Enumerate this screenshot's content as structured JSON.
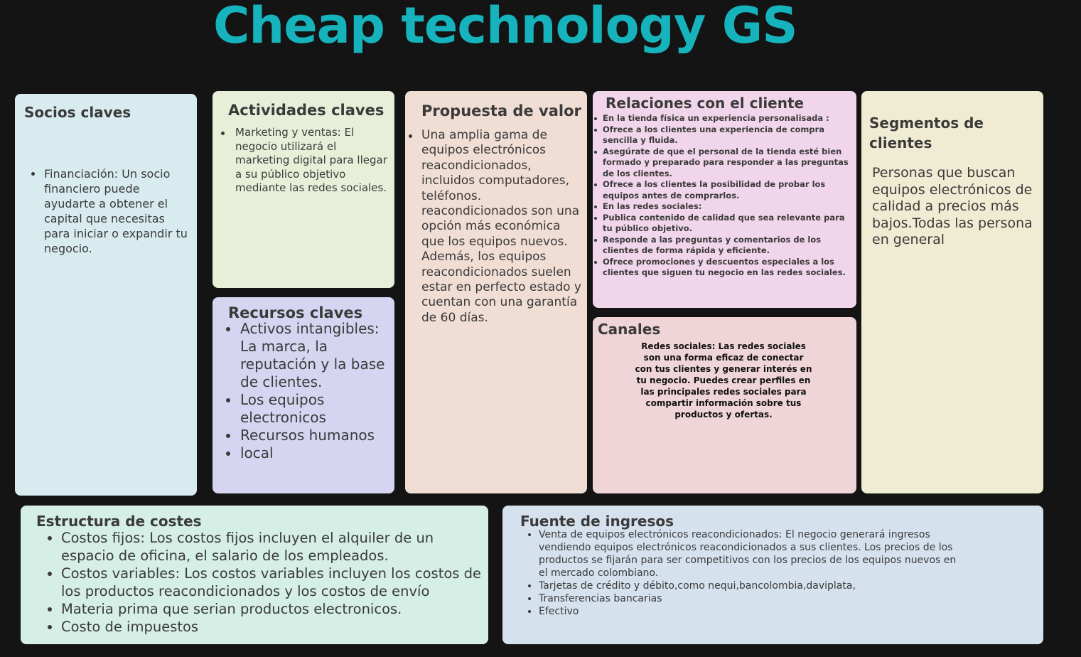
{
  "title": "Cheap technology GS",
  "socios": {
    "heading": "Socios claves",
    "items": [
      "Financiación: Un socio financiero puede ayudarte a obtener el capital que necesitas para iniciar o expandir tu negocio."
    ]
  },
  "actividades": {
    "heading": "Actividades claves",
    "items": [
      "Marketing y ventas: El negocio utilizará el marketing digital para llegar a su público objetivo mediante las redes sociales."
    ]
  },
  "recursos": {
    "heading": "Recursos claves",
    "items": [
      "Activos intangibles: La marca, la reputación y la base de clientes.",
      "Los equipos electronicos",
      "Recursos humanos",
      "local"
    ]
  },
  "propuesta": {
    "heading": "Propuesta de valor",
    "items": [
      "Una amplia gama de equipos electrónicos reacondicionados, incluidos computadores, teléfonos. reacondicionados son una opción más económica que los equipos nuevos. Además, los equipos reacondicionados suelen estar en perfecto estado y cuentan con una garantía de 60 días."
    ]
  },
  "relaciones": {
    "heading": "Relaciones con el cliente",
    "items": [
      "En la tienda física un experiencia personalisada :",
      "Ofrece a los clientes una experiencia de compra sencilla y fluida.",
      "Asegúrate de que el personal de la tienda esté bien formado y preparado para responder a las preguntas de los clientes.",
      "Ofrece a los clientes la posibilidad de probar los equipos antes de comprarlos.",
      "En las redes sociales:",
      "Publica contenido de calidad que sea relevante para tu público objetivo.",
      "Responde a las preguntas y comentarios de los clientes de forma rápida y eficiente.",
      "Ofrece promociones y descuentos especiales a los clientes que siguen tu negocio en las redes sociales."
    ]
  },
  "canales": {
    "heading": "Canales",
    "text": "Redes sociales: Las redes sociales son una forma eficaz de conectar con tus clientes y generar interés en tu negocio. Puedes crear perfiles en las principales redes sociales para compartir información sobre tus productos y ofertas."
  },
  "segmentos": {
    "heading": "Segmentos de clientes",
    "text": "Personas que buscan equipos electrónicos de calidad a precios más bajos.Todas las persona en general"
  },
  "costes": {
    "heading": "Estructura de costes",
    "items": [
      "Costos fijos: Los costos fijos incluyen el alquiler de un espacio de oficina, el salario de los empleados.",
      "Costos variables: Los costos variables incluyen los costos de los productos reacondicionados y los costos de envío",
      "Materia prima que serian productos electronicos.",
      "Costo de impuestos"
    ]
  },
  "ingresos": {
    "heading": "Fuente de ingresos",
    "items": [
      "Venta de equipos electrónicos reacondicionados: El negocio generará ingresos vendiendo equipos electrónicos reacondicionados a sus clientes. Los precios de los productos se fijarán para ser competitivos con los precios de los equipos nuevos en el mercado colombiano.",
      "Tarjetas de crédito y débito,como nequi,bancolombia,daviplata,",
      "Transferencias bancarias",
      "Efectivo"
    ]
  }
}
